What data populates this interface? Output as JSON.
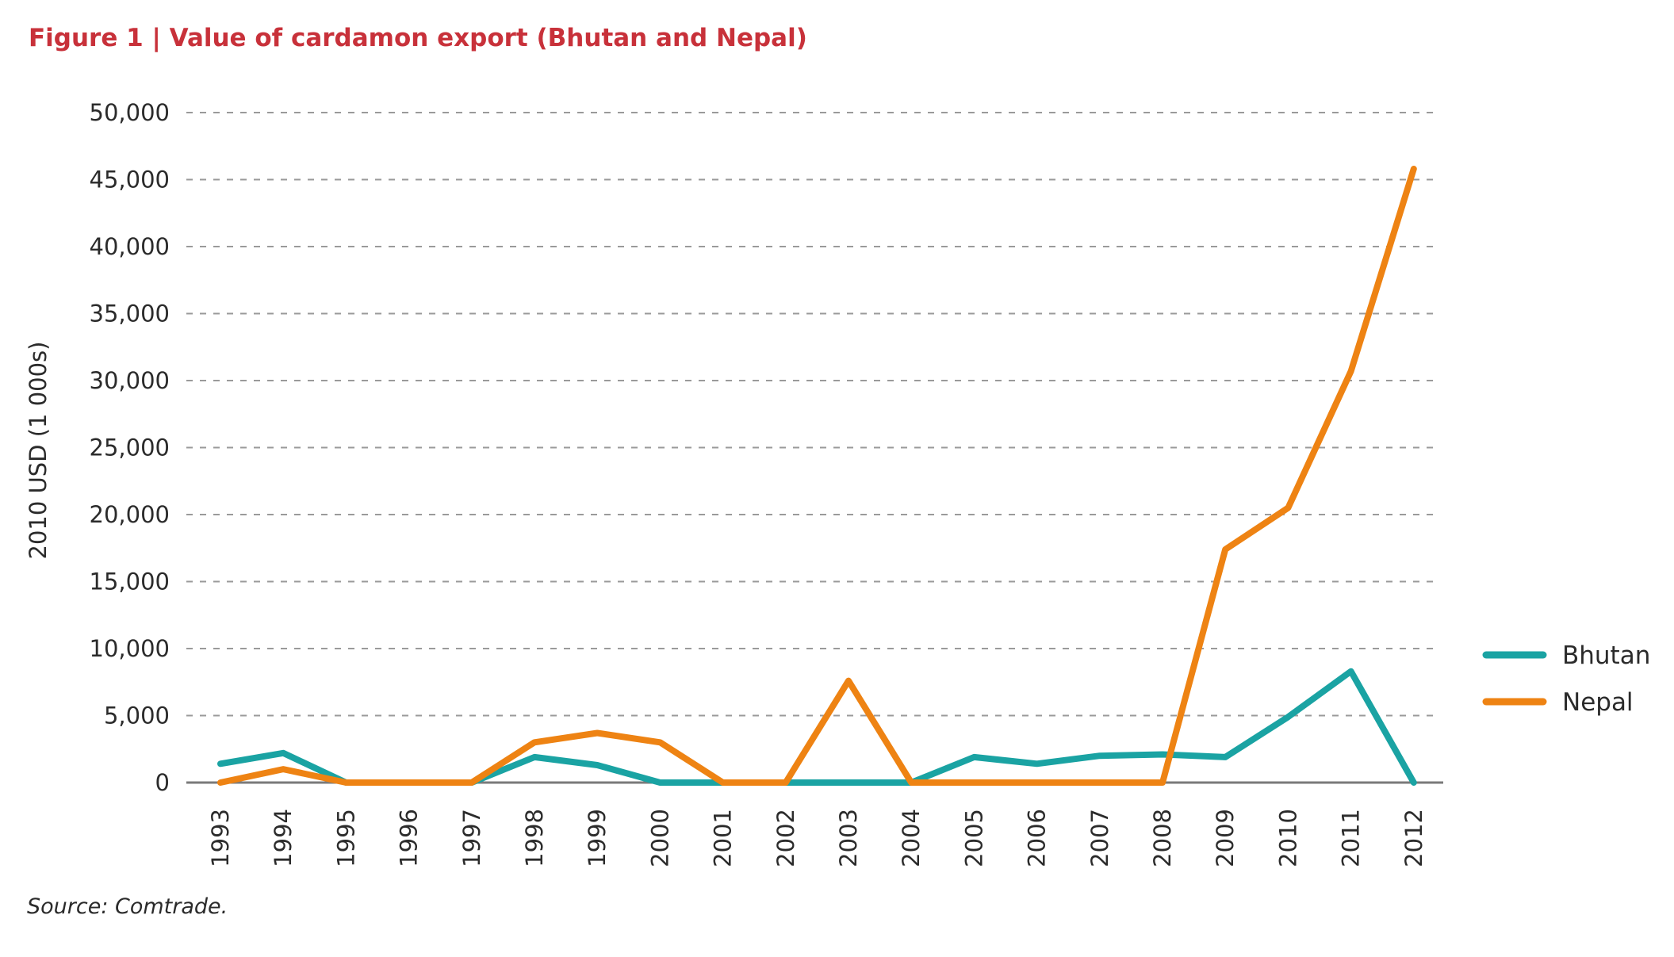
{
  "title": "Figure 1 | Value of cardamon export (Bhutan and Nepal)",
  "source": "Source: Comtrade.",
  "colors": {
    "title": "#c8313a",
    "bhutan": "#1aa3a3",
    "nepal": "#ee8313",
    "grid": "#9a9a9a",
    "axis": "#7a7a7a"
  },
  "chart_data": {
    "type": "line",
    "x": [
      "1993",
      "1994",
      "1995",
      "1996",
      "1997",
      "1998",
      "1999",
      "2000",
      "2001",
      "2002",
      "2003",
      "2004",
      "2005",
      "2006",
      "2007",
      "2008",
      "2009",
      "2010",
      "2011",
      "2012"
    ],
    "series": [
      {
        "name": "Bhutan",
        "color": "#1aa3a3",
        "values": [
          1400,
          2200,
          0,
          0,
          0,
          1900,
          1300,
          0,
          0,
          0,
          0,
          0,
          1900,
          1400,
          2000,
          2100,
          1900,
          4900,
          8300,
          0
        ]
      },
      {
        "name": "Nepal",
        "color": "#ee8313",
        "values": [
          0,
          1000,
          0,
          0,
          0,
          3000,
          3700,
          3000,
          0,
          0,
          7600,
          0,
          0,
          0,
          0,
          0,
          17400,
          20500,
          30700,
          45800
        ]
      }
    ],
    "ylabel": "2010 USD (1 000s)",
    "xlabel": "",
    "ylim": [
      0,
      50000
    ],
    "yticks": [
      0,
      5000,
      10000,
      15000,
      20000,
      25000,
      30000,
      35000,
      40000,
      45000,
      50000
    ],
    "ytick_labels": [
      "0",
      "5,000",
      "10,000",
      "15,000",
      "20,000",
      "25,000",
      "30,000",
      "35,000",
      "40,000",
      "45,000",
      "50,000"
    ],
    "grid": "horizontal dashed",
    "legend": "right"
  }
}
